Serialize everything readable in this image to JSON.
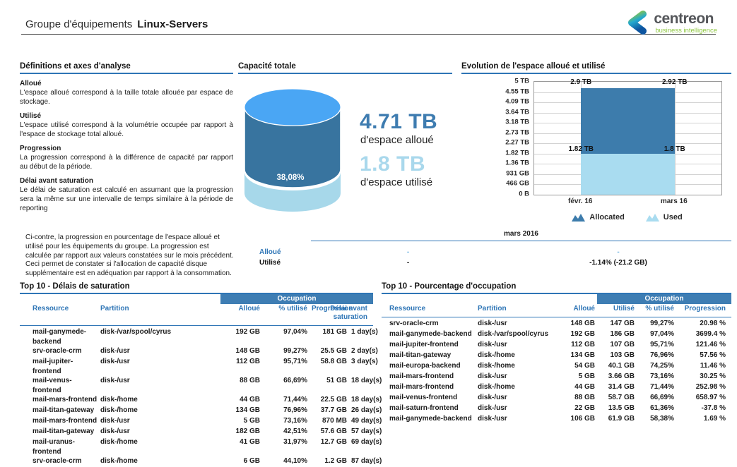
{
  "header": {
    "title_prefix": "Groupe d'équipements",
    "title_bold": "Linux-Servers",
    "logo_name": "centreon",
    "logo_tagline": "business intelligence"
  },
  "sections": {
    "definitions": {
      "title": "Définitions et axes d'analyse",
      "items": [
        {
          "term": "Alloué",
          "text": "L'espace alloué correspond à la taille totale allouée par espace de stockage."
        },
        {
          "term": "Utilisé",
          "text": "L'espace utilisé correspond à la volumétrie occupée par rapport à l'espace de stockage total alloué."
        },
        {
          "term": "Progression",
          "text": "La progression correspond à la différence de capacité par rapport au début de la période."
        },
        {
          "term": "Délai avant saturation",
          "text": "Le délai de saturation est calculé en assumant que la progression sera la même sur une intervalle de temps similaire à la période de reporting"
        }
      ]
    },
    "capacity_title": "Capacité totale",
    "evolution_title": "Evolution de l'espace alloué et utilisé",
    "progression_note": "Ci-contre, la progression en pourcentage de l'espace alloué et utilisé pour les équipements du groupe. La progression est calculée par rapport aux valeurs constatées sur le mois précédent. Ceci permet de constater si l'allocation de capacité disque supplémentaire est en adéquation par rapport à la consommation.",
    "month_summary": {
      "month": "mars 2016",
      "rows": [
        {
          "label": "Alloué",
          "col1": "-",
          "col2": "-"
        },
        {
          "label": "Utilisé",
          "col1": "-",
          "col2": "-1.14% (-21.2 GB)"
        }
      ]
    }
  },
  "chart_data": [
    {
      "type": "cylinder-gauge",
      "title": "Capacité totale",
      "pct_used": 38.08,
      "pct_used_label": "38,08%",
      "allocated_value": "4.71 TB",
      "allocated_caption": "d'espace alloué",
      "used_value": "1.8 TB",
      "used_caption": "d'espace utilisé",
      "colors": {
        "top": "#4aa6f4",
        "allocated_band": "#38749f",
        "used_band": "#a7d8ea"
      }
    },
    {
      "type": "bar",
      "subtype": "stacked",
      "title": "Evolution de l'espace alloué et utilisé",
      "categories": [
        "févr. 16",
        "mars 16"
      ],
      "series": [
        {
          "name": "Allocated",
          "color": "#3d7cac",
          "values_tb": [
            2.9,
            2.92
          ],
          "labels": [
            "2.9 TB",
            "2.92 TB"
          ]
        },
        {
          "name": "Used",
          "color": "#a9dcf0",
          "values_tb": [
            1.82,
            1.8
          ],
          "labels": [
            "1.82 TB",
            "1.8 TB"
          ]
        }
      ],
      "yticks": [
        "5 TB",
        "4.55 TB",
        "4.09 TB",
        "3.64 TB",
        "3.18 TB",
        "2.73 TB",
        "2.27 TB",
        "1.82 TB",
        "1.36 TB",
        "931 GB",
        "466 GB",
        "0 B"
      ],
      "ymax_tb": 5,
      "grid": true,
      "legend_position": "bottom"
    }
  ],
  "tables": {
    "saturation": {
      "title": "Top 10 - Délais de saturation",
      "band_label": "Occupation",
      "columns": [
        "Ressource",
        "Partition",
        "Alloué",
        "% utilisé",
        "Progression",
        "Délai avant saturation"
      ],
      "rows": [
        [
          "mail-ganymede-backend",
          "disk-/var/spool/cyrus",
          "192 GB",
          "97,04%",
          "181 GB",
          "1 day(s)"
        ],
        [
          "srv-oracle-crm",
          "disk-/usr",
          "148 GB",
          "99,27%",
          "25.5 GB",
          "2 day(s)"
        ],
        [
          "mail-jupiter-frontend",
          "disk-/usr",
          "112 GB",
          "95,71%",
          "58.8 GB",
          "3 day(s)"
        ],
        [
          "mail-venus-frontend",
          "disk-/usr",
          "88 GB",
          "66,69%",
          "51 GB",
          "18 day(s)"
        ],
        [
          "mail-mars-frontend",
          "disk-/home",
          "44 GB",
          "71,44%",
          "22.5 GB",
          "18 day(s)"
        ],
        [
          "mail-titan-gateway",
          "disk-/home",
          "134 GB",
          "76,96%",
          "37.7 GB",
          "26 day(s)"
        ],
        [
          "mail-mars-frontend",
          "disk-/usr",
          "5 GB",
          "73,16%",
          "870 MB",
          "49 day(s)"
        ],
        [
          "mail-titan-gateway",
          "disk-/usr",
          "182 GB",
          "42,51%",
          "57.6 GB",
          "57 day(s)"
        ],
        [
          "mail-uranus-frontend",
          "disk-/home",
          "41 GB",
          "31,97%",
          "12.7 GB",
          "69 day(s)"
        ],
        [
          "srv-oracle-crm",
          "disk-/home",
          "6 GB",
          "44,10%",
          "1.2 GB",
          "87 day(s)"
        ]
      ]
    },
    "occupation": {
      "title": "Top 10 - Pourcentage d'occupation",
      "band_label": "Occupation",
      "columns": [
        "Ressource",
        "Partition",
        "Alloué",
        "Utilisé",
        "% utilisé",
        "Progression"
      ],
      "rows": [
        [
          "srv-oracle-crm",
          "disk-/usr",
          "148 GB",
          "147 GB",
          "99,27%",
          "20.98 %"
        ],
        [
          "mail-ganymede-backend",
          "disk-/var/spool/cyrus",
          "192 GB",
          "186 GB",
          "97,04%",
          "3699.4 %"
        ],
        [
          "mail-jupiter-frontend",
          "disk-/usr",
          "112 GB",
          "107 GB",
          "95,71%",
          "121.46 %"
        ],
        [
          "mail-titan-gateway",
          "disk-/home",
          "134 GB",
          "103 GB",
          "76,96%",
          "57.56 %"
        ],
        [
          "mail-europa-backend",
          "disk-/home",
          "54 GB",
          "40.1 GB",
          "74,25%",
          "11.46 %"
        ],
        [
          "mail-mars-frontend",
          "disk-/usr",
          "5 GB",
          "3.66 GB",
          "73,16%",
          "30.25 %"
        ],
        [
          "mail-mars-frontend",
          "disk-/home",
          "44 GB",
          "31.4 GB",
          "71,44%",
          "252.98 %"
        ],
        [
          "mail-venus-frontend",
          "disk-/usr",
          "88 GB",
          "58.7 GB",
          "66,69%",
          "658.97 %"
        ],
        [
          "mail-saturn-frontend",
          "disk-/usr",
          "22 GB",
          "13.5 GB",
          "61,36%",
          "-37.8 %"
        ],
        [
          "mail-ganymede-backend",
          "disk-/usr",
          "106 GB",
          "61.9 GB",
          "58,38%",
          "1.69 %"
        ]
      ]
    }
  }
}
